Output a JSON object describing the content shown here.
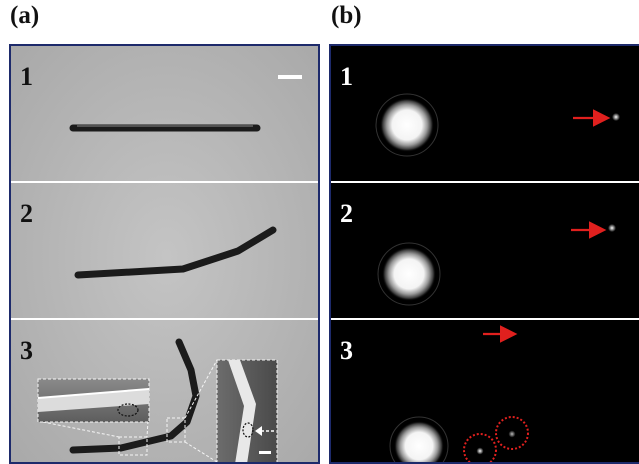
{
  "panels": {
    "a": {
      "label": "(a)",
      "rows": [
        {
          "number": "1"
        },
        {
          "number": "2"
        },
        {
          "number": "3"
        }
      ]
    },
    "b": {
      "label": "(b)",
      "rows": [
        {
          "number": "1"
        },
        {
          "number": "2"
        },
        {
          "number": "3"
        }
      ]
    }
  },
  "colors": {
    "frame_border": "#1d2a6b",
    "arrow": "#e0201e",
    "circle": "#e0201e",
    "separator": "#ffffff"
  },
  "icons": {
    "arrow": "right-arrow-icon",
    "inset_arrow": "left-dashed-arrow-icon"
  }
}
